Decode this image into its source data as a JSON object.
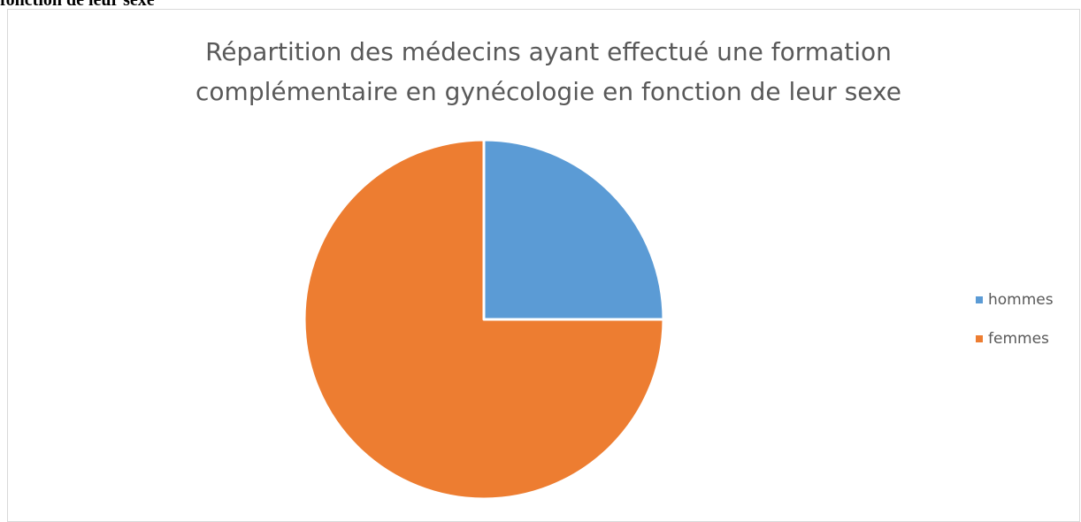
{
  "caption": "fonction de leur sexe",
  "chart_data": {
    "type": "pie",
    "title": "Répartition des médecins ayant effectué une formation complémentaire en gynécologie en fonction de leur sexe",
    "categories": [
      "hommes",
      "femmes"
    ],
    "values": [
      25,
      75
    ],
    "colors": [
      "#5b9bd5",
      "#ed7d31"
    ],
    "legend": "right"
  }
}
